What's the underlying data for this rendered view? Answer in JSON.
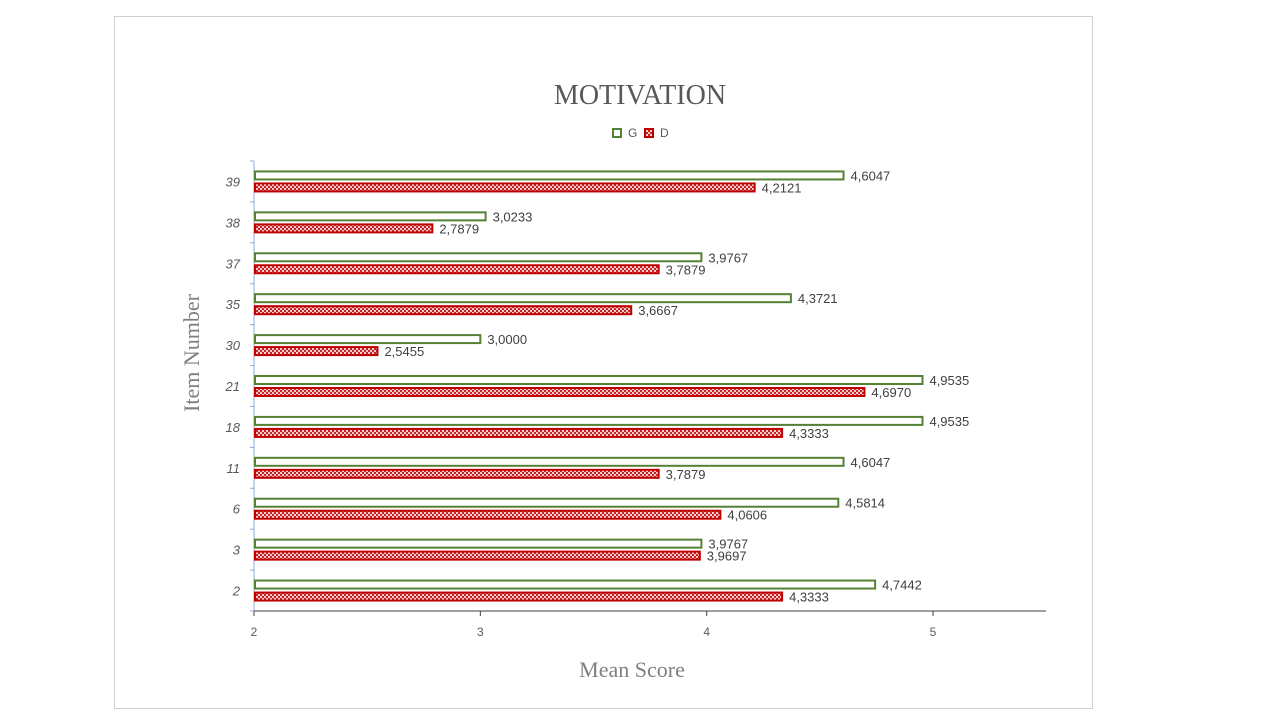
{
  "chart_data": {
    "type": "bar",
    "orientation": "horizontal",
    "title": "MOTIVATION",
    "xlabel": "Mean Score",
    "ylabel": "Item Number",
    "xlim": [
      2,
      5
    ],
    "x_ticks": [
      "2",
      "3",
      "4",
      "5"
    ],
    "categories": [
      "2",
      "3",
      "6",
      "11",
      "18",
      "21",
      "30",
      "35",
      "37",
      "38",
      "39"
    ],
    "series": [
      {
        "name": "G",
        "color": "#548235",
        "fill": "outline",
        "values": [
          4.7442,
          3.9767,
          4.5814,
          4.6047,
          4.9535,
          4.9535,
          3.0,
          4.3721,
          3.9767,
          3.0233,
          4.6047
        ],
        "labels": [
          "4,7442",
          "3,9767",
          "4,5814",
          "4,6047",
          "4,9535",
          "4,9535",
          "3,0000",
          "4,3721",
          "3,9767",
          "3,0233",
          "4,6047"
        ]
      },
      {
        "name": "D",
        "color": "#c00000",
        "fill": "crosshatch",
        "values": [
          4.3333,
          3.9697,
          4.0606,
          3.7879,
          4.3333,
          4.697,
          2.5455,
          3.6667,
          3.7879,
          2.7879,
          4.2121
        ],
        "labels": [
          "4,3333",
          "3,9697",
          "4,0606",
          "3,7879",
          "4,3333",
          "4,6970",
          "2,5455",
          "3,6667",
          "3,7879",
          "2,7879",
          "4,2121"
        ]
      }
    ],
    "legend_position": "top",
    "grid": false
  }
}
